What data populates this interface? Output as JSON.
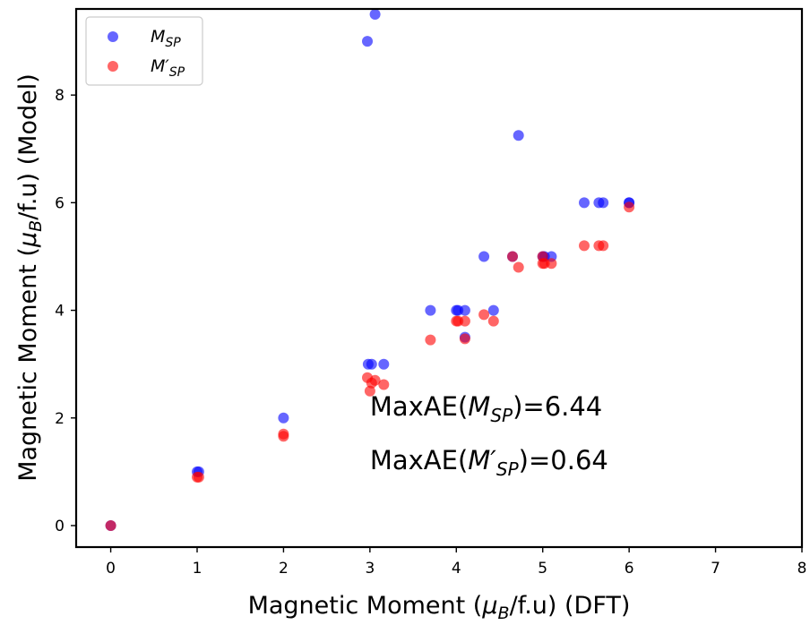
{
  "chart_data": {
    "type": "scatter",
    "xlabel": {
      "prefix": "Magnetic Moment (",
      "mu": "μ",
      "sub": "B",
      "suffix": "/f.u) (DFT)"
    },
    "ylabel": {
      "prefix": "Magnetic Moment (",
      "mu": "μ",
      "sub": "B",
      "suffix": "/f.u) (Model)"
    },
    "xlim": [
      -0.4,
      8
    ],
    "ylim": [
      -0.4,
      9.6
    ],
    "xticks": [
      0,
      1,
      2,
      3,
      4,
      5,
      6,
      7,
      8
    ],
    "yticks": [
      0,
      2,
      4,
      6,
      8
    ],
    "grid": false,
    "legend_position": "upper-left",
    "series": [
      {
        "name": {
          "base": "M",
          "sub": "SP"
        },
        "color": "#0000ff",
        "alpha": 0.6,
        "points": [
          [
            0,
            0
          ],
          [
            1,
            1
          ],
          [
            1.02,
            1
          ],
          [
            2,
            2
          ],
          [
            2.98,
            3
          ],
          [
            3.02,
            3
          ],
          [
            3.16,
            3
          ],
          [
            2.97,
            9.0
          ],
          [
            3.06,
            9.5
          ],
          [
            3.7,
            4
          ],
          [
            4.0,
            4
          ],
          [
            4.02,
            4
          ],
          [
            4.1,
            4
          ],
          [
            4.1,
            3.5
          ],
          [
            4.43,
            4
          ],
          [
            4.32,
            5
          ],
          [
            4.65,
            5
          ],
          [
            5.0,
            5
          ],
          [
            5.02,
            5
          ],
          [
            5.1,
            5
          ],
          [
            4.72,
            7.25
          ],
          [
            5.48,
            6
          ],
          [
            5.65,
            6
          ],
          [
            5.7,
            6
          ],
          [
            6.0,
            6
          ],
          [
            6.0,
            6
          ]
        ]
      },
      {
        "name": {
          "base": "M′",
          "sub": "SP"
        },
        "color": "#ff0000",
        "alpha": 0.6,
        "points": [
          [
            0,
            0
          ],
          [
            1,
            0.9
          ],
          [
            1.02,
            0.9
          ],
          [
            2,
            1.7
          ],
          [
            2,
            1.66
          ],
          [
            2.97,
            2.75
          ],
          [
            3.0,
            2.5
          ],
          [
            3.02,
            2.65
          ],
          [
            3.06,
            2.7
          ],
          [
            3.16,
            2.62
          ],
          [
            3.7,
            3.45
          ],
          [
            4.0,
            3.8
          ],
          [
            4.02,
            3.8
          ],
          [
            4.1,
            3.8
          ],
          [
            4.1,
            3.47
          ],
          [
            4.32,
            3.92
          ],
          [
            4.43,
            3.8
          ],
          [
            4.65,
            5.0
          ],
          [
            4.72,
            4.8
          ],
          [
            5.0,
            4.87
          ],
          [
            5.02,
            4.87
          ],
          [
            5.1,
            4.87
          ],
          [
            5.0,
            5.0
          ],
          [
            5.48,
            5.2
          ],
          [
            5.65,
            5.2
          ],
          [
            5.7,
            5.2
          ],
          [
            6.0,
            5.92
          ]
        ]
      }
    ],
    "annotations": [
      {
        "x": 3.0,
        "y": 2.05,
        "prefix": "MaxAE(",
        "base": "M",
        "sub": "SP",
        "suffix": ")=6.44"
      },
      {
        "x": 3.0,
        "y": 1.05,
        "prefix": "MaxAE(",
        "base": "M′",
        "sub": "SP",
        "suffix": ")=0.64"
      }
    ]
  }
}
